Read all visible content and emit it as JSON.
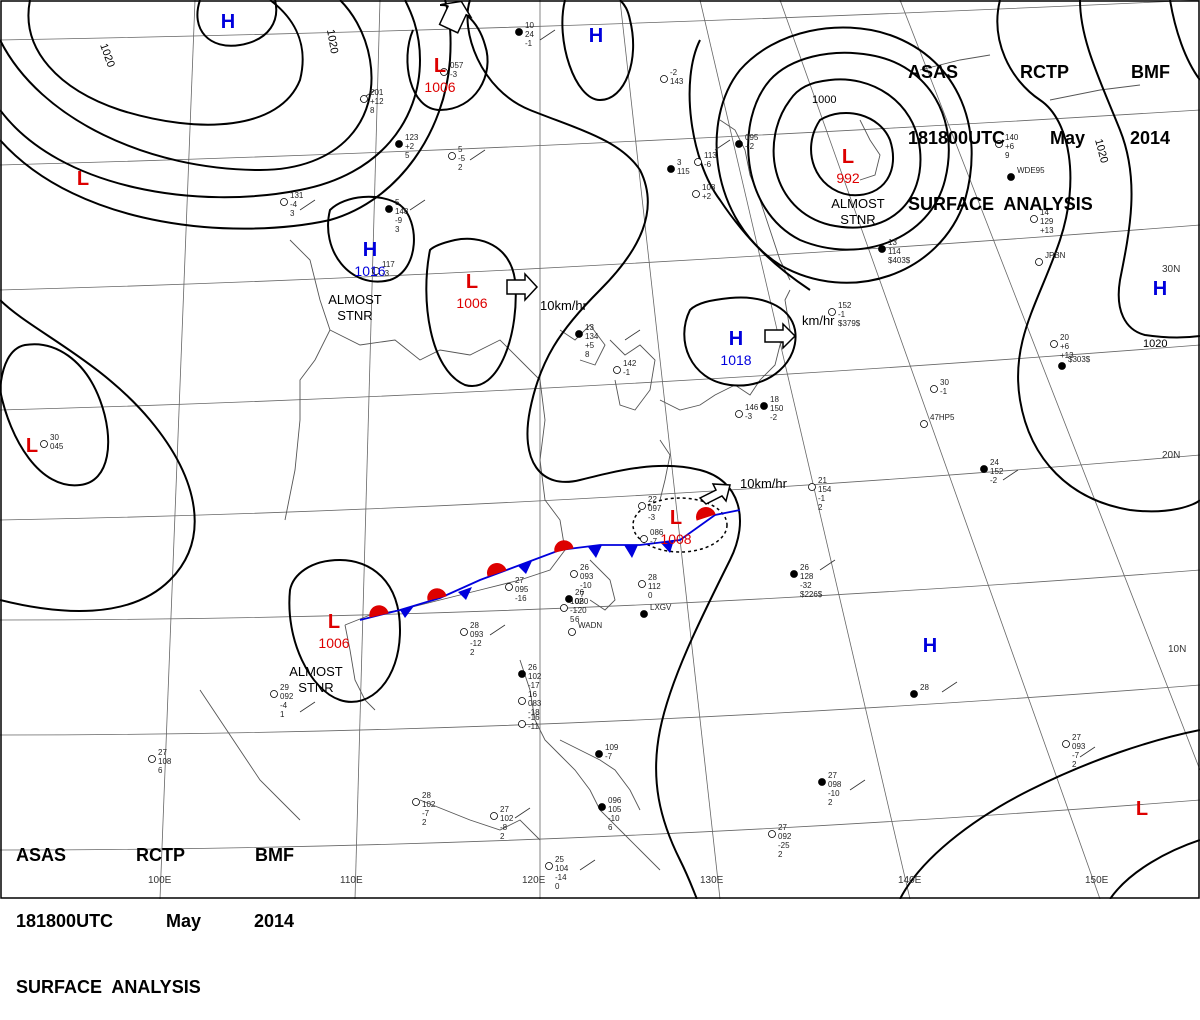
{
  "header_top_right": {
    "line1": [
      "ASAS",
      "RCTP",
      "BMF"
    ],
    "line2": [
      "181800UTC",
      "May",
      "2014"
    ],
    "line3": "SURFACE  ANALYSIS"
  },
  "header_bottom_left": {
    "line1": [
      "ASAS",
      "RCTP",
      "BMF"
    ],
    "line2": [
      "181800UTC",
      "May",
      "2014"
    ],
    "line3": "SURFACE  ANALYSIS"
  },
  "colors": {
    "high": "#0000dd",
    "low": "#dd0000",
    "isobar": "#000000",
    "grid": "#666666",
    "coast": "#555555"
  },
  "pressure_centers": [
    {
      "type": "H",
      "value": ""
    },
    {
      "type": "H",
      "value": ""
    },
    {
      "type": "L",
      "value": "1006"
    },
    {
      "type": "L",
      "value": ""
    },
    {
      "type": "H",
      "value": "1016",
      "note": [
        "ALMOST",
        "STNR"
      ]
    },
    {
      "type": "L",
      "value": "1006"
    },
    {
      "type": "L",
      "value": "992",
      "note": [
        "ALMOST",
        "STNR"
      ]
    },
    {
      "type": "H",
      "value": "1018"
    },
    {
      "type": "H",
      "value": ""
    },
    {
      "type": "L",
      "value": ""
    },
    {
      "type": "L",
      "value": "1006",
      "note": [
        "ALMOST",
        "STNR"
      ]
    },
    {
      "type": "L",
      "value": "1008"
    },
    {
      "type": "H",
      "value": ""
    },
    {
      "type": "L",
      "value": ""
    }
  ],
  "motion_labels": [
    "10km/hr",
    "km/hr",
    "10km/hr"
  ],
  "isobar_labels": [
    "1020",
    "1020",
    "1000",
    "1020",
    "1020"
  ],
  "latitude_labels": [
    "30N",
    "20N",
    "10N"
  ],
  "longitude_labels": [
    "100E",
    "110E",
    "120E",
    "130E",
    "140E",
    "150E"
  ],
  "station_plots": [
    {
      "lines": [
        "10",
        "24",
        "-1"
      ]
    },
    {
      "lines": [
        "201",
        "+12",
        "8"
      ]
    },
    {
      "lines": [
        "057",
        "-3"
      ]
    },
    {
      "lines": [
        "123",
        "+2",
        "5"
      ]
    },
    {
      "lines": [
        "5",
        "-5",
        "2"
      ]
    },
    {
      "lines": [
        "131",
        "-4",
        "3"
      ]
    },
    {
      "lines": [
        "5",
        "148",
        "-9",
        "3"
      ]
    },
    {
      "lines": [
        "117",
        "-3"
      ]
    },
    {
      "lines": [
        "30",
        "045"
      ]
    },
    {
      "lines": [
        "13",
        "134",
        "+5",
        "8"
      ]
    },
    {
      "lines": [
        "142",
        "-1"
      ]
    },
    {
      "lines": [
        "113",
        "-6"
      ]
    },
    {
      "lines": [
        "095",
        "+2"
      ]
    },
    {
      "lines": [
        "108",
        "+2"
      ]
    },
    {
      "lines": [
        "140",
        "+6",
        "9"
      ]
    },
    {
      "lines": [
        "WDE95"
      ]
    },
    {
      "lines": [
        "14",
        "129",
        "+13"
      ]
    },
    {
      "lines": [
        "JPBN"
      ]
    },
    {
      "lines": [
        "13",
        "114",
        "$403$"
      ]
    },
    {
      "lines": [
        "152",
        "-1",
        "$379$"
      ]
    },
    {
      "lines": [
        "20",
        "+6",
        "+13"
      ]
    },
    {
      "lines": [
        "$303$"
      ]
    },
    {
      "lines": [
        "30",
        "-1"
      ]
    },
    {
      "lines": [
        "47HP5"
      ]
    },
    {
      "lines": [
        "18",
        "150",
        "-2"
      ]
    },
    {
      "lines": [
        "146",
        "-3"
      ]
    },
    {
      "lines": [
        "21",
        "154",
        "-1",
        "2"
      ]
    },
    {
      "lines": [
        "24",
        "152",
        "-2"
      ]
    },
    {
      "lines": [
        "22",
        "097",
        "-3"
      ]
    },
    {
      "lines": [
        "086",
        "-7"
      ]
    },
    {
      "lines": [
        "26",
        "128",
        "-32",
        "$226$"
      ]
    },
    {
      "lines": [
        "27",
        "095",
        "-16"
      ]
    },
    {
      "lines": [
        "26",
        "093",
        "-10",
        "7"
      ]
    },
    {
      "lines": [
        "26",
        "080",
        "-20",
        "6"
      ]
    },
    {
      "lines": [
        "102",
        "-1",
        "5"
      ]
    },
    {
      "lines": [
        "28",
        "112",
        "0"
      ]
    },
    {
      "lines": [
        "LXGV"
      ]
    },
    {
      "lines": [
        "WADN"
      ]
    },
    {
      "lines": [
        "28",
        "093",
        "-12",
        "2"
      ]
    },
    {
      "lines": [
        "28"
      ]
    },
    {
      "lines": [
        "29",
        "092",
        "-4",
        "1"
      ]
    },
    {
      "lines": [
        "27",
        "108",
        "6"
      ]
    },
    {
      "lines": [
        "26",
        "102",
        "-17"
      ]
    },
    {
      "lines": [
        "16",
        "083",
        "-18"
      ]
    },
    {
      "lines": [
        "-16",
        "-11"
      ]
    },
    {
      "lines": [
        "109",
        "-7"
      ]
    },
    {
      "lines": [
        "28",
        "102",
        "-7",
        "2"
      ]
    },
    {
      "lines": [
        "27",
        "102",
        "-8",
        "2"
      ]
    },
    {
      "lines": [
        "096",
        "105",
        "-10",
        "6"
      ]
    },
    {
      "lines": [
        "25",
        "104",
        "-14",
        "0"
      ]
    },
    {
      "lines": [
        "27",
        "093",
        "-7",
        "2"
      ]
    },
    {
      "lines": [
        "27",
        "098",
        "-10",
        "2"
      ]
    },
    {
      "lines": [
        "27",
        "092",
        "-25",
        "2"
      ]
    },
    {
      "lines": [
        "-2",
        "143"
      ]
    },
    {
      "lines": [
        "3",
        "115"
      ]
    }
  ]
}
